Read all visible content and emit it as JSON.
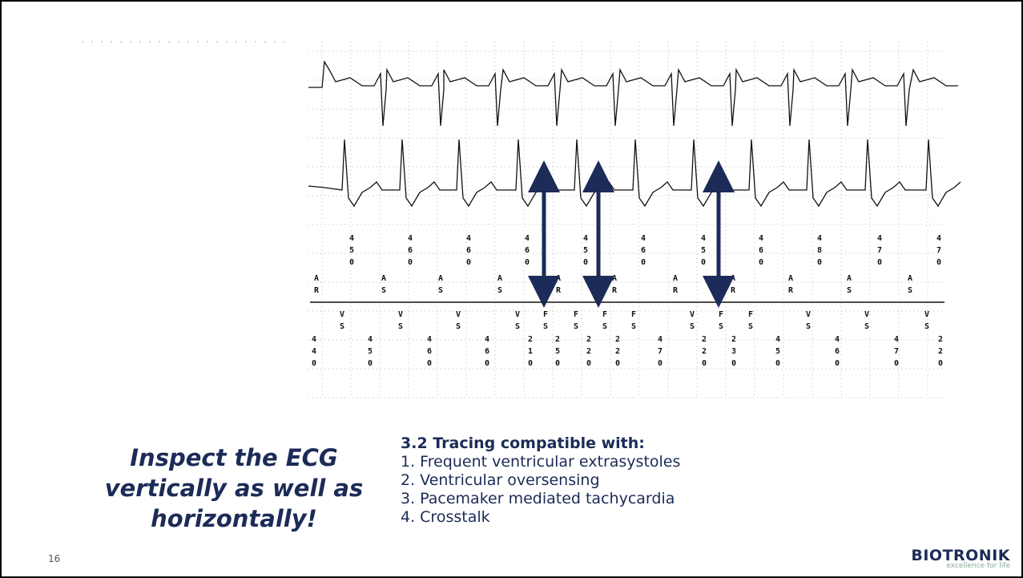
{
  "ecg": {
    "upper_intervals": [
      "450",
      "460",
      "460",
      "460",
      "450",
      "460",
      "450",
      "460",
      "480",
      "470",
      "470"
    ],
    "atrial_markers": [
      "AR",
      "AS",
      "AS",
      "AS",
      "AR",
      "AR",
      "AR",
      "AR",
      "AR",
      "AS",
      "AS"
    ],
    "ventricular_markers": [
      "VS",
      "VS",
      "VS",
      "VS",
      "FS",
      "FS",
      "FS",
      "FS",
      "VS",
      "FS",
      "FS",
      "VS",
      "VS",
      "VS"
    ],
    "lower_intervals": [
      "440",
      "450",
      "460",
      "460",
      "210",
      "250",
      "220",
      "220",
      "470",
      "220",
      "230",
      "450",
      "460",
      "470",
      "220"
    ]
  },
  "callout": "Inspect the ECG vertically as well as horizontally!",
  "question": {
    "heading": "3.2 Tracing compatible with:",
    "options": [
      "1. Frequent ventricular extrasystoles",
      "2. Ventricular oversensing",
      "3. Pacemaker mediated tachycardia",
      "4. Crosstalk"
    ]
  },
  "page_number": "16",
  "logo": {
    "name": "BIOTRONIK",
    "tagline": "excellence for life"
  }
}
